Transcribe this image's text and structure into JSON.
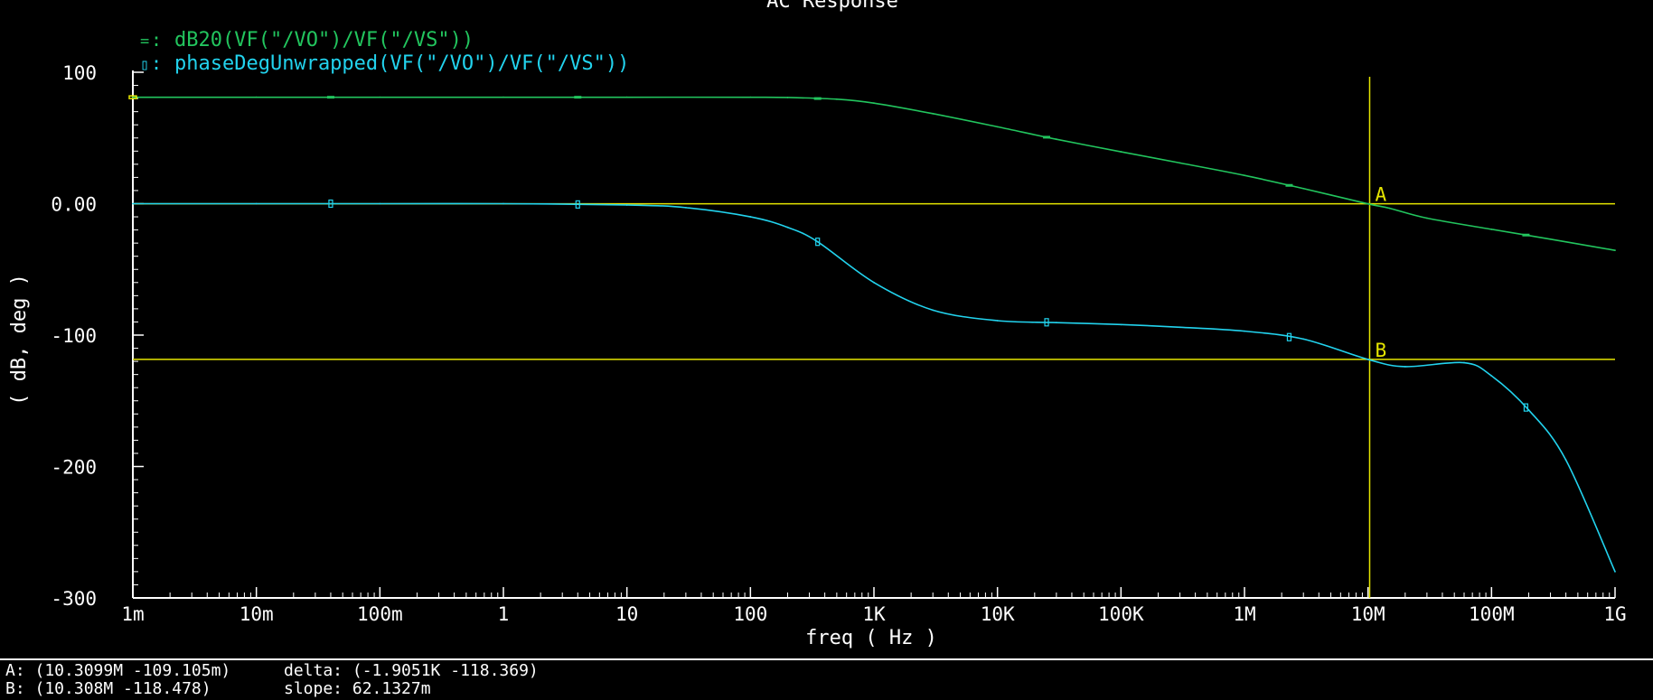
{
  "window": {
    "title": "AC Response"
  },
  "status": {
    "marker_a": "A: (10.3099M -109.105m)",
    "marker_b": "B: (10.308M -118.478)",
    "delta": "delta: (-1.9051K -118.369)",
    "slope": "slope: 62.1327m"
  },
  "chart_data": {
    "type": "line",
    "title": "AC Response",
    "xlabel": "freq ( Hz )",
    "ylabel": "( dB, deg )",
    "xscale": "log",
    "xlim": [
      0.001,
      1000000000
    ],
    "ylim": [
      -300,
      100
    ],
    "x_ticks": [
      {
        "value": 0.001,
        "label": "1m"
      },
      {
        "value": 0.01,
        "label": "10m"
      },
      {
        "value": 0.1,
        "label": "100m"
      },
      {
        "value": 1,
        "label": "1"
      },
      {
        "value": 10,
        "label": "10"
      },
      {
        "value": 100,
        "label": "100"
      },
      {
        "value": 1000,
        "label": "1K"
      },
      {
        "value": 10000,
        "label": "10K"
      },
      {
        "value": 100000,
        "label": "100K"
      },
      {
        "value": 1000000,
        "label": "1M"
      },
      {
        "value": 10000000,
        "label": "10M"
      },
      {
        "value": 100000000,
        "label": "100M"
      },
      {
        "value": 1000000000,
        "label": "1G"
      }
    ],
    "y_ticks": [
      {
        "value": 100,
        "label": "100"
      },
      {
        "value": 0,
        "label": "0.00"
      },
      {
        "value": -100,
        "label": "-100"
      },
      {
        "value": -200,
        "label": "-200"
      },
      {
        "value": -300,
        "label": "-300"
      }
    ],
    "grid": false,
    "legend_position": "top-left",
    "background_color": "#000000",
    "axis_color": "#ffffff",
    "series": [
      {
        "name": "dB20(VF(\"/VO\")/VF(\"/VS\"))",
        "color": "#22c55e",
        "legend_symbol": "=",
        "x": [
          0.001,
          0.01,
          0.1,
          1,
          10,
          100,
          200,
          500,
          1000,
          3000,
          10000,
          30000,
          100000,
          300000,
          1000000,
          3000000,
          10000000,
          15000000,
          30000000,
          100000000,
          300000000,
          1000000000
        ],
        "y": [
          81,
          81,
          81,
          81,
          81,
          81,
          80.8,
          79.5,
          76.5,
          68.5,
          58.5,
          49,
          39.5,
          31,
          21.5,
          11.5,
          -0.11,
          -3.5,
          -11,
          -19.5,
          -27,
          -35.5
        ],
        "markers_x": [
          0.001,
          0.04,
          4,
          350,
          25000,
          2300000,
          190000000
        ]
      },
      {
        "name": "phaseDegUnwrapped(VF(\"/VO\")/VF(\"/VS\"))",
        "color": "#22d3ee",
        "legend_symbol": "▯",
        "x": [
          0.001,
          0.01,
          0.1,
          1,
          10,
          30,
          100,
          200,
          350,
          1000,
          3000,
          10000,
          30000,
          100000,
          300000,
          1000000,
          3000000,
          10000000,
          20000000,
          60000000,
          100000000,
          200000000,
          400000000,
          1000000000
        ],
        "y": [
          0,
          0,
          0,
          0,
          -1,
          -3,
          -10,
          -18,
          -29,
          -60,
          -81,
          -89,
          -90.5,
          -92,
          -94,
          -97,
          -103,
          -118.5,
          -124,
          -121,
          -131,
          -157,
          -195,
          -280
        ],
        "markers_x": [
          0.04,
          4,
          350,
          25000,
          2300000,
          190000000
        ]
      }
    ],
    "markers": [
      {
        "label": "A",
        "type": "horizontal",
        "y": -0.109105
      },
      {
        "label": "B",
        "type": "horizontal",
        "y": -118.478
      },
      {
        "label": "",
        "type": "vertical",
        "x": 10309900
      }
    ],
    "marker_color": "#e5e500"
  }
}
